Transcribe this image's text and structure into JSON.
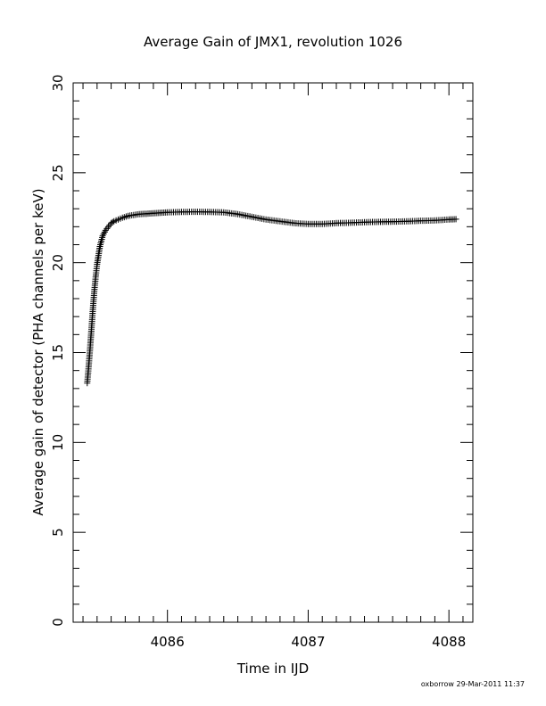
{
  "chart_data": {
    "type": "scatter",
    "title": "Average Gain of JMX1, revolution 1026",
    "xlabel": "Time in IJD",
    "ylabel": "Average gain of detector (PHA channels per keV)",
    "xlim": [
      4085.33,
      4088.17
    ],
    "ylim": [
      0,
      30
    ],
    "x_ticks": [
      4086,
      4087,
      4088
    ],
    "y_ticks": [
      0,
      5,
      10,
      15,
      20,
      25,
      30
    ],
    "x_tick_labels": [
      "4086",
      "4087",
      "4088"
    ],
    "y_tick_labels": [
      "0",
      "5",
      "10",
      "15",
      "20",
      "25",
      "30"
    ],
    "marker": "plus",
    "grid": false,
    "legend": "none",
    "series": [
      {
        "x": [
          4085.43,
          4085.44,
          4085.45,
          4085.46,
          4085.47,
          4085.48,
          4085.49,
          4085.5,
          4085.51,
          4085.52,
          4085.53,
          4085.54,
          4085.56,
          4085.58,
          4085.6,
          4085.62,
          4085.65,
          4085.68,
          4085.72,
          4085.76,
          4085.8,
          4085.85,
          4085.9,
          4085.95,
          4086.0,
          4086.1,
          4086.2,
          4086.3,
          4086.4,
          4086.5,
          4086.6,
          4086.7,
          4086.8,
          4086.9,
          4087.0,
          4087.1,
          4087.2,
          4087.3,
          4087.4,
          4087.5,
          4087.6,
          4087.7,
          4087.8,
          4087.9,
          4088.0,
          4088.05
        ],
        "y": [
          13.3,
          14.2,
          15.2,
          16.3,
          17.4,
          18.4,
          19.2,
          19.9,
          20.4,
          20.9,
          21.2,
          21.5,
          21.8,
          22.0,
          22.2,
          22.3,
          22.4,
          22.5,
          22.6,
          22.65,
          22.7,
          22.72,
          22.75,
          22.77,
          22.8,
          22.82,
          22.83,
          22.82,
          22.8,
          22.7,
          22.55,
          22.4,
          22.3,
          22.2,
          22.15,
          22.15,
          22.2,
          22.22,
          22.25,
          22.27,
          22.28,
          22.3,
          22.33,
          22.35,
          22.4,
          22.42
        ]
      }
    ]
  },
  "footer": {
    "credit": "oxborrow 29-Mar-2011 11:37"
  }
}
